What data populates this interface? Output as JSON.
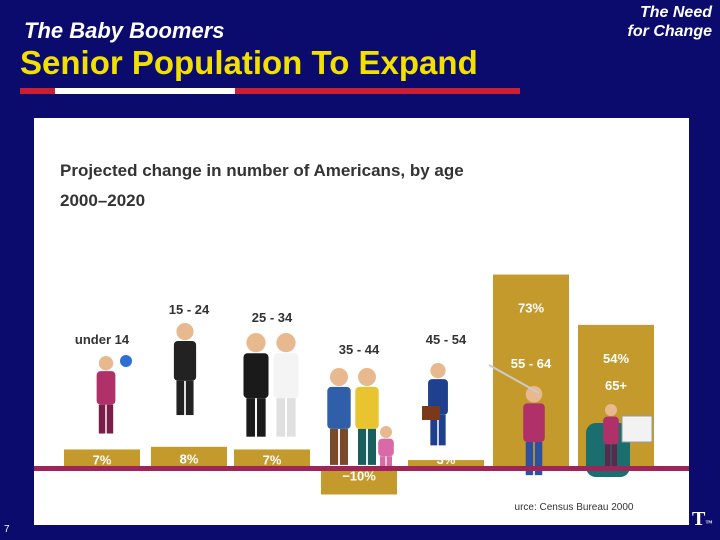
{
  "header": {
    "subtitle": "The Baby Boomers",
    "title": "Senior Population To Expand",
    "section_line1": "The Need",
    "section_line2": "for Change"
  },
  "footer": {
    "page_number": "7",
    "logo_text": "T",
    "logo_mark": "™"
  },
  "colors": {
    "background": "#0b0b6e",
    "title": "#f2e000",
    "bar": "#c59a2d",
    "baseline": "#a0235a"
  },
  "chart_data": {
    "type": "bar",
    "title_line1": "Projected change in number of Americans, by age",
    "title_line2": "2000–2020",
    "categories": [
      "under 14",
      "15 - 24",
      "25 - 34",
      "35 - 44",
      "45 - 54",
      "55 - 64",
      "65+"
    ],
    "values": [
      7,
      8,
      7,
      -10,
      3,
      73,
      54
    ],
    "value_labels": [
      "7%",
      "8%",
      "7%",
      "−10%",
      "3%",
      "73%",
      "54%"
    ],
    "ylim": [
      -12,
      80
    ],
    "source": "urce: Census Bureau 2000",
    "xlabel": "",
    "ylabel": ""
  }
}
